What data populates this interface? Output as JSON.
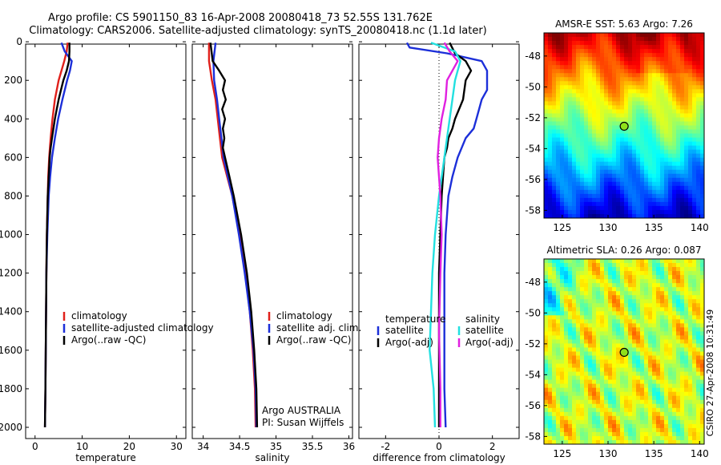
{
  "header": {
    "title_line1": "Argo profile: CS 5901150_83 16-Apr-2008 20080418_73 52.55S 131.762E",
    "title_line2": "Climatology: CARS2006. Satellite-adjusted climatology: synTS_20080418.nc (1.1d later)"
  },
  "colors": {
    "climatology": "#e0201b",
    "satellite": "#1c2fd9",
    "argo": "#000000",
    "satellite_salinity_diff": "#22e0e0",
    "argo_salinity_diff": "#e020e0"
  },
  "chart_data": [
    {
      "type": "line",
      "id": "temperature",
      "xlabel": "temperature",
      "ylabel": "",
      "xlim": [
        -2,
        32
      ],
      "ylim": [
        2050,
        0
      ],
      "xticks": [
        0,
        10,
        20,
        30
      ],
      "yticks": [
        0,
        200,
        400,
        600,
        800,
        1000,
        1200,
        1400,
        1600,
        1800,
        2000
      ],
      "legend": {
        "position": "lower-right",
        "labels": [
          "climatology",
          "satellite-adjusted climatology",
          "Argo(..raw -QC)"
        ]
      },
      "series": [
        {
          "name": "climatology",
          "color_key": "climatology",
          "depth": [
            5,
            50,
            100,
            150,
            200,
            300,
            400,
            500,
            600,
            700,
            800,
            1000,
            1200,
            1500,
            1800,
            2000
          ],
          "values": [
            6.9,
            6.7,
            6.2,
            5.6,
            5.0,
            4.2,
            3.7,
            3.3,
            3.0,
            2.8,
            2.7,
            2.5,
            2.4,
            2.3,
            2.2,
            2.1
          ]
        },
        {
          "name": "satellite-adjusted climatology",
          "color_key": "satellite",
          "depth": [
            5,
            50,
            100,
            150,
            200,
            300,
            400,
            500,
            600,
            700,
            800,
            1000,
            1200,
            1500,
            1800,
            2000
          ],
          "values": [
            5.6,
            6.3,
            7.8,
            7.4,
            6.8,
            5.8,
            4.9,
            4.2,
            3.6,
            3.2,
            2.9,
            2.6,
            2.4,
            2.3,
            2.2,
            2.1
          ]
        },
        {
          "name": "Argo(..raw -QC)",
          "color_key": "argo",
          "depth": [
            5,
            50,
            100,
            150,
            200,
            250,
            300,
            350,
            400,
            450,
            500,
            550,
            600,
            700,
            800,
            1000,
            1200,
            1500,
            1800,
            2000
          ],
          "values": [
            7.3,
            7.3,
            7.2,
            6.7,
            6.0,
            5.5,
            5.0,
            4.6,
            4.2,
            3.9,
            3.6,
            3.3,
            3.1,
            2.9,
            2.7,
            2.5,
            2.4,
            2.3,
            2.2,
            2.1
          ]
        }
      ]
    },
    {
      "type": "line",
      "id": "salinity",
      "xlabel": "salinity",
      "ylabel": "",
      "xlim": [
        33.85,
        36.05
      ],
      "ylim": [
        2050,
        0
      ],
      "xticks": [
        34,
        34.5,
        35,
        35.5,
        36
      ],
      "yticks": [
        0,
        200,
        400,
        600,
        800,
        1000,
        1200,
        1400,
        1600,
        1800,
        2000
      ],
      "legend": {
        "position": "lower-right",
        "labels": [
          "climatology",
          "satellite adj. clim.",
          "Argo(..raw -QC)"
        ]
      },
      "annotation": {
        "line1": "Argo AUSTRALIA",
        "line2": "PI: Susan Wijffels"
      },
      "series": [
        {
          "name": "climatology",
          "color_key": "climatology",
          "depth": [
            5,
            100,
            200,
            300,
            400,
            500,
            600,
            700,
            800,
            1000,
            1200,
            1400,
            1600,
            1800,
            2000
          ],
          "values": [
            34.08,
            34.08,
            34.12,
            34.17,
            34.2,
            34.23,
            34.26,
            34.33,
            34.4,
            34.5,
            34.58,
            34.64,
            34.68,
            34.71,
            34.72
          ]
        },
        {
          "name": "satellite adj. clim.",
          "color_key": "satellite",
          "depth": [
            5,
            100,
            200,
            300,
            400,
            500,
            600,
            700,
            800,
            1000,
            1200,
            1400,
            1600,
            1800,
            2000
          ],
          "values": [
            34.17,
            34.14,
            34.15,
            34.19,
            34.22,
            34.25,
            34.28,
            34.34,
            34.4,
            34.49,
            34.57,
            34.64,
            34.69,
            34.72,
            34.73
          ]
        },
        {
          "name": "Argo(..raw -QC)",
          "color_key": "argo",
          "depth": [
            5,
            100,
            150,
            200,
            250,
            300,
            350,
            400,
            450,
            500,
            550,
            600,
            700,
            800,
            1000,
            1200,
            1400,
            1600,
            1800,
            2000
          ],
          "values": [
            34.1,
            34.13,
            34.22,
            34.3,
            34.27,
            34.31,
            34.26,
            34.3,
            34.27,
            34.29,
            34.27,
            34.3,
            34.36,
            34.42,
            34.52,
            34.6,
            34.66,
            34.7,
            34.73,
            34.74
          ]
        }
      ]
    },
    {
      "type": "line",
      "id": "difference",
      "xlabel": "difference from climatology",
      "ylabel": "",
      "xlim": [
        -3,
        3
      ],
      "ylim": [
        2050,
        0
      ],
      "xticks": [
        -2,
        0,
        2
      ],
      "yticks": [
        0,
        200,
        400,
        600,
        800,
        1000,
        1200,
        1400,
        1600,
        1800,
        2000
      ],
      "legend": {
        "position": "lower-center",
        "temperature_heading": "temperature",
        "salinity_heading": "salinity",
        "temperature_labels": [
          "satellite",
          "Argo(-adj)"
        ],
        "salinity_labels": [
          "satellite",
          "Argo(-adj)"
        ]
      },
      "series": [
        {
          "name": "temperature satellite",
          "color_key": "satellite",
          "depth": [
            5,
            30,
            60,
            100,
            150,
            200,
            250,
            300,
            350,
            400,
            450,
            500,
            600,
            700,
            800,
            1000,
            1200,
            1500,
            1800,
            2000
          ],
          "values": [
            -1.2,
            -1.1,
            0.3,
            1.6,
            1.8,
            1.8,
            1.8,
            1.6,
            1.5,
            1.4,
            1.3,
            1.0,
            0.7,
            0.5,
            0.35,
            0.25,
            0.2,
            0.2,
            0.2,
            0.25
          ]
        },
        {
          "name": "temperature Argo(-adj)",
          "color_key": "argo",
          "depth": [
            5,
            60,
            100,
            150,
            200,
            300,
            400,
            450,
            500,
            550,
            600,
            700,
            800,
            1000,
            1200,
            1500,
            1800,
            2000
          ],
          "values": [
            0.4,
            0.6,
            1.0,
            1.2,
            1.0,
            0.9,
            0.6,
            0.5,
            0.35,
            0.3,
            0.2,
            0.15,
            0.1,
            0.05,
            0.0,
            0.0,
            0.0,
            0.0
          ]
        },
        {
          "name": "salinity satellite",
          "color_key": "satellite_salinity_diff",
          "depth": [
            5,
            50,
            100,
            150,
            200,
            300,
            400,
            500,
            600,
            800,
            1000,
            1200,
            1400,
            1600,
            1800,
            2000
          ],
          "values": [
            -0.3,
            0.6,
            0.8,
            0.7,
            0.6,
            0.5,
            0.4,
            0.3,
            0.2,
            0.0,
            -0.15,
            -0.25,
            -0.3,
            -0.35,
            -0.2,
            -0.15
          ]
        },
        {
          "name": "salinity Argo(-adj)",
          "color_key": "argo_salinity_diff",
          "depth": [
            5,
            50,
            100,
            150,
            200,
            300,
            400,
            500,
            600,
            700,
            800,
            1000,
            1200,
            1500,
            1800,
            2000
          ],
          "values": [
            0.2,
            0.4,
            0.7,
            0.5,
            0.3,
            0.25,
            0.1,
            0.0,
            -0.05,
            0.0,
            0.05,
            0.1,
            0.05,
            0.0,
            0.05,
            0.05
          ]
        }
      ]
    },
    {
      "type": "heatmap",
      "id": "sst-map",
      "title": "AMSR-E SST: 5.63 Argo: 7.26",
      "xticks": [
        125,
        130,
        135,
        140
      ],
      "yticks": [
        -48,
        -50,
        -52,
        -54,
        -56,
        -58
      ],
      "xlim": [
        123,
        140.5
      ],
      "ylim": [
        -58.5,
        -46.5
      ],
      "marker": {
        "lon": 131.762,
        "lat": -52.55
      }
    },
    {
      "type": "heatmap",
      "id": "sla-map",
      "title": "Altimetric SLA: 0.26 Argo: 0.087",
      "xticks": [
        125,
        130,
        135,
        140
      ],
      "yticks": [
        -48,
        -50,
        -52,
        -54,
        -56,
        -58
      ],
      "xlim": [
        123,
        140.5
      ],
      "ylim": [
        -58.5,
        -46.5
      ],
      "marker": {
        "lon": 131.762,
        "lat": -52.55
      }
    }
  ],
  "footer": {
    "stamp": "CSIRO 27-Apr-2008 10:31:49"
  }
}
